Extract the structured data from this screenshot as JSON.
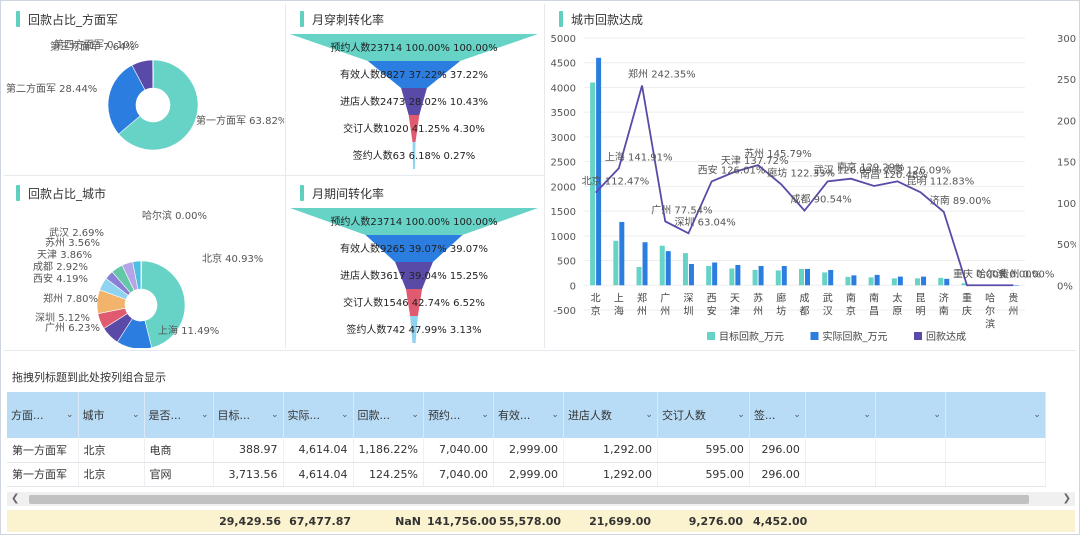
{
  "colors": {
    "teal": "#66d3c6",
    "blue": "#2b7de0",
    "purple": "#5a4aa8",
    "header_bg": "#b9dcf6",
    "total_bg": "#fbf3cf"
  },
  "panels": {
    "army_pie": {
      "title": "回款占比_方面军"
    },
    "city_pie": {
      "title": "回款占比_城市"
    },
    "funnel_cross": {
      "title": "月穿刺转化率"
    },
    "funnel_period": {
      "title": "月期间转化率"
    },
    "combo": {
      "title": "城市回款达成"
    }
  },
  "chart_data": [
    {
      "type": "pie",
      "id": "army_pie",
      "labels": [
        "第一方面军",
        "第二方面军",
        "第三方面军",
        "第四方面军"
      ],
      "values": [
        63.82,
        28.44,
        7.64,
        0.1
      ],
      "label_texts": [
        "第一方面军 63.82%",
        "第二方面军 28.44%",
        "第三方面军 7.64%",
        "第四方面军 0.10%"
      ],
      "colors": [
        "#66d3c6",
        "#2b7de0",
        "#5a4aa8",
        "#e05b6f"
      ]
    },
    {
      "type": "pie",
      "id": "city_pie",
      "labels": [
        "北京",
        "上海",
        "广州",
        "深圳",
        "郑州",
        "西安",
        "成都",
        "天津",
        "苏州",
        "武汉",
        "哈尔滨"
      ],
      "values": [
        40.93,
        11.49,
        6.23,
        5.12,
        7.8,
        4.19,
        2.92,
        3.86,
        3.56,
        2.69,
        0.0
      ],
      "label_texts": [
        "北京 40.93%",
        "上海 11.49%",
        "广州 6.23%",
        "深圳 5.12%",
        "郑州 7.80%",
        "西安 4.19%",
        "成都 2.92%",
        "天津 3.86%",
        "苏州 3.56%",
        "武汉 2.69%",
        "哈尔滨 0.00%"
      ],
      "colors": [
        "#66d3c6",
        "#2b7de0",
        "#5a4aa8",
        "#e05b6f",
        "#f2b36a",
        "#8fd3f0",
        "#8a7fd6",
        "#64c8a8",
        "#b5a4e8",
        "#4cc0e0",
        "#f29bb0",
        "#a8d8a0",
        "#ffd27f",
        "#7fa7e8"
      ]
    },
    {
      "type": "funnel",
      "id": "funnel_cross",
      "stages": [
        {
          "label": "预约人数23714 100.00% 100.00%",
          "color": "#66d3c6"
        },
        {
          "label": "有效人数8827 37.22% 37.22%",
          "color": "#2b7de0"
        },
        {
          "label": "进店人数2473 28.02% 10.43%",
          "color": "#5a4aa8"
        },
        {
          "label": "交订人数1020 41.25% 4.30%",
          "color": "#e05b6f"
        },
        {
          "label": "签约人数63 6.18% 0.27%",
          "color": "#8fd3f0"
        }
      ],
      "widths": [
        1.0,
        0.3722,
        0.1043,
        0.043,
        0.0027
      ]
    },
    {
      "type": "funnel",
      "id": "funnel_period",
      "stages": [
        {
          "label": "预约人数23714 100.00% 100.00%",
          "color": "#66d3c6"
        },
        {
          "label": "有效人数9265 39.07% 39.07%",
          "color": "#2b7de0"
        },
        {
          "label": "进店人数3617 39.04% 15.25%",
          "color": "#5a4aa8"
        },
        {
          "label": "交订人数1546 42.74% 6.52%",
          "color": "#e05b6f"
        },
        {
          "label": "签约人数742 47.99% 3.13%",
          "color": "#8fd3f0"
        }
      ],
      "widths": [
        1.0,
        0.3907,
        0.1525,
        0.0652,
        0.0313
      ]
    },
    {
      "type": "bar-line",
      "id": "combo",
      "categories": [
        "北京",
        "上海",
        "郑州",
        "广州",
        "深圳",
        "西安",
        "天津",
        "苏州",
        "廊坊",
        "成都",
        "武汉",
        "南京",
        "南昌",
        "太原",
        "昆明",
        "济南",
        "重庆",
        "哈尔滨",
        "贵州"
      ],
      "category_labels": [
        "北京",
        "上海",
        "郑州",
        "广州",
        "深圳",
        "西安",
        "天津",
        "苏州",
        "廊坊",
        "成都",
        "武汉",
        "南京",
        "南昌",
        "太原",
        "昆明",
        "济南",
        "重庆",
        "哈尔滨",
        "贵州"
      ],
      "series": [
        {
          "name": "目标回款_万元",
          "color": "#66d3c6",
          "values": [
            4100,
            900,
            370,
            800,
            650,
            390,
            340,
            310,
            300,
            330,
            260,
            170,
            160,
            140,
            140,
            150,
            40,
            10,
            10
          ]
        },
        {
          "name": "实际回款_万元",
          "color": "#2b7de0",
          "values": [
            4600,
            1280,
            870,
            690,
            430,
            460,
            410,
            390,
            390,
            330,
            310,
            200,
            210,
            175,
            175,
            130,
            10,
            5,
            5
          ]
        },
        {
          "name": "回款达成",
          "color": "#5a4aa8",
          "values": [
            112.47,
            141.91,
            242.35,
            77.54,
            63.04,
            126.01,
            137.72,
            145.79,
            122.33,
            90.54,
            126.09,
            129.29,
            120.48,
            126.09,
            112.83,
            89.0,
            0.0,
            0.0,
            0.0
          ]
        }
      ],
      "line_labels": [
        "北京 112.47%",
        "上海 141.91%",
        "郑州 242.35%",
        "广州 77.54%",
        "深圳 63.04%",
        "西安 126.01%",
        "天津 137.72%",
        "苏州 145.79%",
        "廊坊 122.33%",
        "成都 90.54%",
        "武汉 126.09%",
        "南京 129.29%",
        "南昌 120.48%",
        "太原 126.09%",
        "昆明 112.83%",
        "济南 89.00%",
        "重庆 0.00%",
        "哈尔滨 0.00%",
        "贵州 0.00%"
      ],
      "y_left": {
        "min": -500,
        "max": 5000,
        "ticks": [
          "-500",
          "0",
          "500",
          "1000",
          "1500",
          "2000",
          "2500",
          "3000",
          "3500",
          "4000",
          "4500",
          "5000"
        ]
      },
      "y_right": {
        "min": 0,
        "max": 300,
        "ticks": [
          "0%",
          "50%",
          "100%",
          "150%",
          "200%",
          "250%",
          "300%"
        ]
      },
      "legend": "bottom"
    }
  ],
  "grid": {
    "drag_hint": "拖拽列标题到此处按列组合显示",
    "columns": [
      "方面...",
      "城市",
      "是否...",
      "目标...",
      "实际...",
      "回款...",
      "预约...",
      "有效...",
      "进店人数",
      "交订人数",
      "签...",
      "",
      "",
      ""
    ],
    "rows": [
      [
        "第一方面军",
        "北京",
        "电商",
        "388.97",
        "4,614.04",
        "1,186.22%",
        "7,040.00",
        "2,999.00",
        "1,292.00",
        "595.00",
        "296.00"
      ],
      [
        "第一方面军",
        "北京",
        "官网",
        "3,713.56",
        "4,614.04",
        "124.25%",
        "7,040.00",
        "2,999.00",
        "1,292.00",
        "595.00",
        "296.00"
      ]
    ],
    "totals": [
      "29,429.56",
      "67,477.87",
      "NaN",
      "141,756.00",
      "55,578.00",
      "21,699.00",
      "9,276.00",
      "4,452.00"
    ]
  }
}
